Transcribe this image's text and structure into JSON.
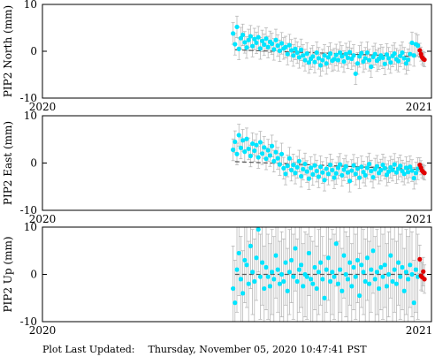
{
  "footer": {
    "label": "Plot Last Updated:",
    "timestamp": "Thursday, November 05, 2020 10:47:41 PST"
  },
  "colors": {
    "observed": "#00e5ff",
    "recent": "#e00000",
    "error_bar": "#b0b0b0",
    "trend": "#555555",
    "frame": "#000000"
  },
  "chart_data": [
    {
      "type": "scatter",
      "ylabel": "PIP2 North (mm)",
      "xlim": [
        "2020",
        "2021"
      ],
      "xticks": [
        "2020",
        "2021"
      ],
      "ylim": [
        -10,
        10
      ],
      "yticks": [
        -10,
        0,
        10
      ],
      "grid": false,
      "trend_start": [
        0.495,
        0.3
      ],
      "trend_end": [
        0.985,
        -1.2
      ],
      "series": [
        {
          "role": "observed",
          "errorbar": 2.3,
          "x": [
            0.49,
            0.495,
            0.5,
            0.505,
            0.51,
            0.515,
            0.52,
            0.525,
            0.53,
            0.535,
            0.54,
            0.545,
            0.55,
            0.555,
            0.56,
            0.565,
            0.57,
            0.575,
            0.58,
            0.585,
            0.59,
            0.595,
            0.6,
            0.605,
            0.61,
            0.615,
            0.62,
            0.625,
            0.63,
            0.635,
            0.64,
            0.645,
            0.65,
            0.655,
            0.66,
            0.665,
            0.67,
            0.675,
            0.68,
            0.685,
            0.69,
            0.695,
            0.7,
            0.705,
            0.71,
            0.715,
            0.72,
            0.725,
            0.73,
            0.735,
            0.74,
            0.745,
            0.75,
            0.755,
            0.76,
            0.765,
            0.77,
            0.775,
            0.78,
            0.785,
            0.79,
            0.795,
            0.8,
            0.805,
            0.81,
            0.815,
            0.82,
            0.825,
            0.83,
            0.835,
            0.84,
            0.845,
            0.85,
            0.855,
            0.86,
            0.865,
            0.87,
            0.875,
            0.88,
            0.885,
            0.89,
            0.895,
            0.9,
            0.905,
            0.91,
            0.915,
            0.92,
            0.925,
            0.93,
            0.935,
            0.94,
            0.945,
            0.95,
            0.955,
            0.96,
            0.965
          ],
          "y": [
            3.8,
            1.5,
            5.2,
            0.5,
            2.8,
            3.5,
            1.9,
            0.8,
            2.4,
            3.2,
            1.1,
            2.6,
            1.8,
            3.0,
            0.6,
            2.2,
            1.4,
            2.7,
            0.9,
            2.0,
            1.6,
            0.4,
            2.4,
            1.2,
            0.1,
            1.7,
            0.6,
            0.9,
            -0.6,
            1.3,
            0.2,
            -0.9,
            0.5,
            -0.3,
            -1.3,
            0.3,
            -0.9,
            -1.9,
            -0.5,
            -2.4,
            -1.6,
            -1.1,
            -2.3,
            -0.3,
            -1.5,
            -3.0,
            -1.9,
            -0.9,
            -2.6,
            -1.3,
            -0.5,
            -2.0,
            -1.7,
            -0.8,
            -1.9,
            -0.3,
            -1.1,
            -2.2,
            -0.6,
            -1.4,
            -0.2,
            -1.6,
            -0.9,
            -4.8,
            -2.6,
            -1.1,
            -0.4,
            -2.2,
            -1.5,
            -0.3,
            -1.9,
            -3.3,
            -1.2,
            -0.6,
            -2.0,
            -1.6,
            -0.9,
            -1.4,
            -2.7,
            -0.7,
            -1.5,
            -2.4,
            -1.0,
            -0.5,
            -1.7,
            -2.1,
            -1.0,
            -0.3,
            -1.5,
            -2.6,
            -1.8,
            -0.6,
            1.8,
            -0.9,
            1.5,
            1.2
          ]
        },
        {
          "role": "recent",
          "errorbar": 1.5,
          "x": [
            0.97,
            0.973,
            0.976,
            0.979,
            0.982
          ],
          "y": [
            0.2,
            -0.6,
            -1.3,
            -1.6,
            -1.8
          ]
        }
      ]
    },
    {
      "type": "scatter",
      "ylabel": "PIP2 East (mm)",
      "xlim": [
        "2020",
        "2021"
      ],
      "xticks": [
        "2020",
        "2021"
      ],
      "ylim": [
        -10,
        10
      ],
      "yticks": [
        -10,
        0,
        10
      ],
      "grid": false,
      "trend_start": [
        0.495,
        0.3
      ],
      "trend_end": [
        0.985,
        -1.4
      ],
      "series": [
        {
          "role": "observed",
          "errorbar": 2.3,
          "x": [
            0.49,
            0.495,
            0.5,
            0.505,
            0.51,
            0.515,
            0.52,
            0.525,
            0.53,
            0.535,
            0.54,
            0.545,
            0.55,
            0.555,
            0.56,
            0.565,
            0.57,
            0.575,
            0.58,
            0.585,
            0.59,
            0.595,
            0.6,
            0.605,
            0.61,
            0.615,
            0.62,
            0.625,
            0.63,
            0.635,
            0.64,
            0.645,
            0.65,
            0.655,
            0.66,
            0.665,
            0.67,
            0.675,
            0.68,
            0.685,
            0.69,
            0.695,
            0.7,
            0.705,
            0.71,
            0.715,
            0.72,
            0.725,
            0.73,
            0.735,
            0.74,
            0.745,
            0.75,
            0.755,
            0.76,
            0.765,
            0.77,
            0.775,
            0.78,
            0.785,
            0.79,
            0.795,
            0.8,
            0.805,
            0.81,
            0.815,
            0.82,
            0.825,
            0.83,
            0.835,
            0.84,
            0.845,
            0.85,
            0.855,
            0.86,
            0.865,
            0.87,
            0.875,
            0.88,
            0.885,
            0.89,
            0.895,
            0.9,
            0.905,
            0.91,
            0.915,
            0.92,
            0.925,
            0.93,
            0.935,
            0.94,
            0.945,
            0.95,
            0.955,
            0.96,
            0.965
          ],
          "y": [
            2.8,
            4.5,
            1.9,
            5.9,
            3.2,
            4.8,
            2.4,
            5.1,
            3.0,
            1.5,
            4.1,
            2.6,
            3.8,
            1.2,
            4.4,
            2.0,
            3.3,
            0.9,
            2.7,
            1.6,
            3.6,
            0.4,
            2.3,
            1.0,
            -0.3,
            1.9,
            -1.1,
            -2.3,
            -0.6,
            1.0,
            -1.5,
            -0.4,
            -2.1,
            -0.9,
            0.4,
            -2.8,
            -1.3,
            -0.2,
            -1.8,
            -3.3,
            -1.0,
            -2.4,
            -0.5,
            -1.7,
            -2.9,
            -0.8,
            -2.0,
            -3.6,
            -1.2,
            -2.3,
            -0.4,
            -1.5,
            -3.1,
            -2.2,
            -1.0,
            -0.3,
            -2.6,
            -1.4,
            -0.7,
            -2.0,
            -3.8,
            -1.6,
            -0.5,
            -2.3,
            -1.2,
            -3.1,
            -0.8,
            -1.9,
            -2.6,
            -1.0,
            -0.2,
            -1.7,
            -3.0,
            -1.3,
            -0.7,
            -2.1,
            -1.5,
            -0.4,
            -1.1,
            -2.5,
            -1.8,
            -0.9,
            -1.5,
            -0.3,
            -2.0,
            -1.2,
            -0.6,
            -1.7,
            -2.3,
            -1.0,
            -1.9,
            -0.8,
            -1.6,
            -3.2,
            -2.1,
            -1.2
          ]
        },
        {
          "role": "recent",
          "errorbar": 1.5,
          "x": [
            0.97,
            0.973,
            0.976,
            0.979,
            0.982
          ],
          "y": [
            -0.4,
            -1.0,
            -1.6,
            -1.9,
            -2.1
          ]
        }
      ]
    },
    {
      "type": "scatter",
      "ylabel": "PIP2 Up (mm)",
      "xlim": [
        "2020",
        "2021"
      ],
      "xticks": [
        "2020",
        "2021"
      ],
      "ylim": [
        -10,
        10
      ],
      "yticks": [
        -10,
        0,
        10
      ],
      "grid": false,
      "trend_start": [
        0.495,
        0.0
      ],
      "trend_end": [
        0.985,
        0.0
      ],
      "series": [
        {
          "role": "observed",
          "errorbar": 9.0,
          "x": [
            0.49,
            0.495,
            0.5,
            0.505,
            0.51,
            0.515,
            0.52,
            0.525,
            0.53,
            0.535,
            0.54,
            0.545,
            0.55,
            0.555,
            0.56,
            0.565,
            0.57,
            0.575,
            0.58,
            0.585,
            0.59,
            0.595,
            0.6,
            0.605,
            0.61,
            0.615,
            0.62,
            0.625,
            0.63,
            0.635,
            0.64,
            0.645,
            0.65,
            0.655,
            0.66,
            0.665,
            0.67,
            0.675,
            0.68,
            0.685,
            0.69,
            0.695,
            0.7,
            0.705,
            0.71,
            0.715,
            0.72,
            0.725,
            0.73,
            0.735,
            0.74,
            0.745,
            0.75,
            0.755,
            0.76,
            0.765,
            0.77,
            0.775,
            0.78,
            0.785,
            0.79,
            0.795,
            0.8,
            0.805,
            0.81,
            0.815,
            0.82,
            0.825,
            0.83,
            0.835,
            0.84,
            0.845,
            0.85,
            0.855,
            0.86,
            0.865,
            0.87,
            0.875,
            0.88,
            0.885,
            0.89,
            0.895,
            0.9,
            0.905,
            0.91,
            0.915,
            0.92,
            0.925,
            0.93,
            0.935,
            0.94,
            0.945,
            0.95,
            0.955,
            0.96,
            0.965
          ],
          "y": [
            -3.0,
            -6.0,
            1.0,
            4.5,
            -1.0,
            -4.0,
            3.0,
            2.0,
            -2.0,
            6.0,
            0.5,
            -1.5,
            3.5,
            9.5,
            -0.5,
            2.5,
            -3.0,
            1.5,
            -0.5,
            -2.5,
            0.5,
            -1.0,
            4.0,
            1.0,
            -2.0,
            0.0,
            -1.5,
            2.5,
            -3.5,
            0.5,
            3.0,
            -0.5,
            5.5,
            -1.5,
            1.0,
            2.0,
            -2.5,
            0.0,
            -0.5,
            4.5,
            -1.0,
            -2.0,
            1.5,
            -3.0,
            0.5,
            2.5,
            -1.0,
            -5.0,
            1.0,
            3.5,
            -1.5,
            0.5,
            -0.5,
            6.5,
            -2.0,
            1.0,
            -3.5,
            4.0,
            0.0,
            -1.0,
            2.5,
            -2.5,
            1.5,
            -0.5,
            3.0,
            -4.5,
            2.0,
            0.5,
            -1.5,
            3.5,
            -2.0,
            1.0,
            5.0,
            -1.0,
            0.5,
            -3.0,
            1.5,
            -0.5,
            2.0,
            -2.5,
            0.0,
            4.0,
            -1.5,
            1.0,
            -2.0,
            2.5,
            -0.5,
            1.5,
            -3.5,
            0.5,
            -1.0,
            2.0,
            0.0,
            -6.0,
            1.0,
            -0.5
          ]
        },
        {
          "role": "recent",
          "errorbar": 3.0,
          "x": [
            0.97,
            0.973,
            0.976,
            0.979,
            0.982
          ],
          "y": [
            3.2,
            -0.3,
            -0.6,
            0.6,
            -1.0
          ]
        }
      ]
    }
  ]
}
